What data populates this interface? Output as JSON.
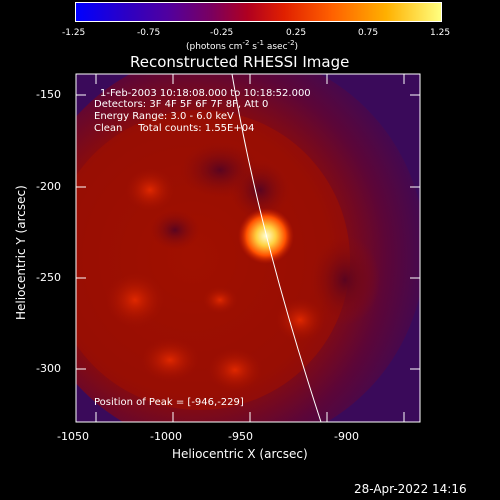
{
  "colorbar": {
    "ticks": [
      "-1.25",
      "-0.75",
      "-0.25",
      "0.25",
      "0.75",
      "1.25"
    ],
    "units_text": "(photons cm",
    "units_sup1": "-2",
    "units_mid1": " s",
    "units_sup2": "-1",
    "units_mid2": " asec",
    "units_sup3": "-2",
    "units_end": ")"
  },
  "title": "Reconstructed RHESSI Image",
  "info": {
    "line1": "1-Feb-2003 10:18:08.000 to 10:18:52.000",
    "line2": "Detectors: 3F 4F 5F 6F 7F 8F, Att 0",
    "line3": "Energy Range: 3.0 - 6.0 keV",
    "line4": "Clean     Total counts: 1.55E+04",
    "peak": "Position of Peak = [-946,-229]"
  },
  "axes": {
    "xlabel": "Heliocentric X (arcsec)",
    "ylabel": "Heliocentric Y (arcsec)",
    "xticks": [
      "-1050",
      "-1000",
      "-950",
      "-900"
    ],
    "yticks": [
      "-150",
      "-200",
      "-250",
      "-300"
    ]
  },
  "timestamp": "28-Apr-2022 14:16"
}
